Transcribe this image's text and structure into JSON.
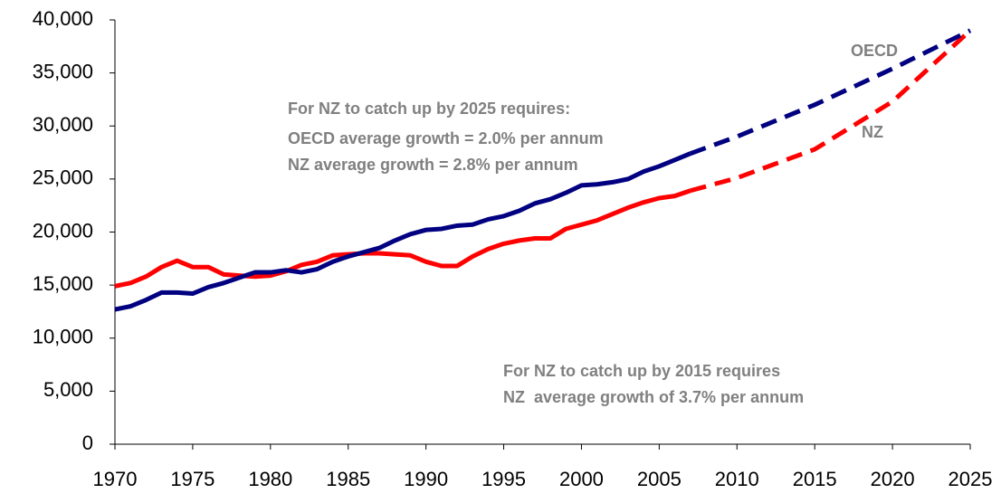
{
  "chart_data": {
    "type": "line",
    "x": [
      1970,
      1971,
      1972,
      1973,
      1974,
      1975,
      1976,
      1977,
      1978,
      1979,
      1980,
      1981,
      1982,
      1983,
      1984,
      1985,
      1986,
      1987,
      1988,
      1989,
      1990,
      1991,
      1992,
      1993,
      1994,
      1995,
      1996,
      1997,
      1998,
      1999,
      2000,
      2001,
      2002,
      2003,
      2004,
      2005,
      2006,
      2007,
      2010,
      2015,
      2020,
      2025
    ],
    "series": [
      {
        "name": "NZ",
        "color": "#ff0000",
        "values": [
          14900,
          15200,
          15800,
          16700,
          17300,
          16700,
          16700,
          16000,
          15900,
          15800,
          15900,
          16300,
          16900,
          17200,
          17800,
          17900,
          18000,
          18000,
          17900,
          17800,
          17200,
          16800,
          16800,
          17700,
          18400,
          18900,
          19200,
          19400,
          19400,
          20300,
          20700,
          21100,
          21700,
          22300,
          22800,
          23200,
          23400,
          23900,
          25100,
          27800,
          32300,
          39000
        ]
      },
      {
        "name": "OECD",
        "color": "#000080",
        "values": [
          12700,
          13000,
          13600,
          14300,
          14300,
          14200,
          14800,
          15200,
          15700,
          16200,
          16200,
          16400,
          16200,
          16500,
          17200,
          17700,
          18100,
          18500,
          19200,
          19800,
          20200,
          20300,
          20600,
          20700,
          21200,
          21500,
          22000,
          22700,
          23100,
          23700,
          24400,
          24500,
          24700,
          25000,
          25700,
          26200,
          26800,
          27400,
          29000,
          32000,
          35400,
          39000
        ]
      }
    ],
    "projection_from": 2007,
    "xlim": [
      1970,
      2025
    ],
    "xticks": [
      1970,
      1975,
      1980,
      1985,
      1990,
      1995,
      2000,
      2005,
      2010,
      2015,
      2020,
      2025
    ],
    "ylim": [
      0,
      40000
    ],
    "yticks": [
      0,
      {
        "value": 5000,
        "label": "5,000"
      },
      {
        "value": 10000,
        "label": "10,000"
      },
      {
        "value": 15000,
        "label": "15,000"
      },
      {
        "value": 20000,
        "label": "20,000"
      },
      {
        "value": 25000,
        "label": "25,000"
      },
      {
        "value": 30000,
        "label": "30,000"
      },
      {
        "value": 35000,
        "label": "35,000"
      },
      {
        "value": 40000,
        "label": "40,000"
      }
    ],
    "grid": false,
    "annotations": [
      "For NZ to catch up by 2025 requires:",
      "OECD average growth = 2.0% per annum",
      "NZ average growth = 2.8% per annum",
      "For NZ to catch up by 2015 requires",
      "NZ  average growth of 3.7% per annum"
    ]
  }
}
